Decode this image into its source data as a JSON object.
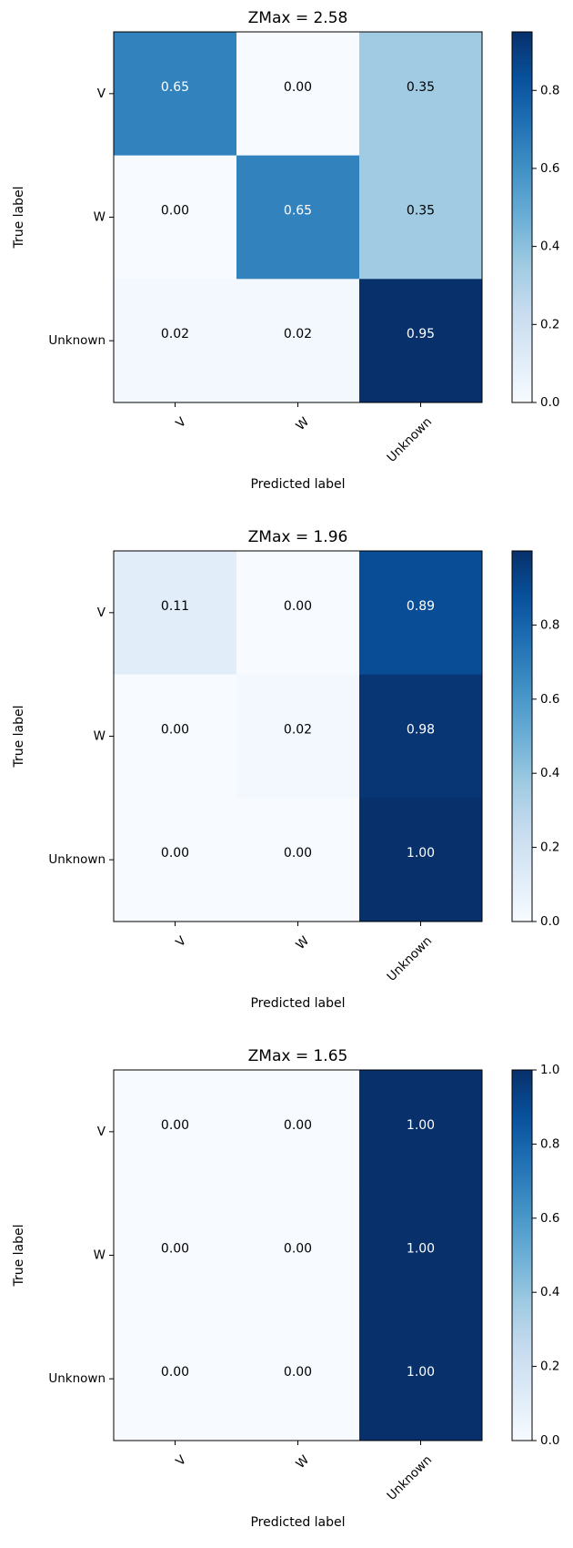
{
  "colors": {
    "cmap_low": "#f7fbff",
    "cmap_mid": "#6baed6",
    "cmap_high": "#08306b",
    "text_dark": "#000000",
    "text_light": "#ffffff"
  },
  "chart_data": [
    {
      "type": "heatmap",
      "title": "ZMax = 2.58",
      "xlabel": "Predicted label",
      "ylabel": "True label",
      "x_categories": [
        "V",
        "W",
        "Unknown"
      ],
      "y_categories": [
        "V",
        "W",
        "Unknown"
      ],
      "values": [
        [
          0.65,
          0.0,
          0.35
        ],
        [
          0.0,
          0.65,
          0.35
        ],
        [
          0.02,
          0.02,
          0.95
        ]
      ],
      "value_labels": [
        [
          "0.65",
          "0.00",
          "0.35"
        ],
        [
          "0.00",
          "0.65",
          "0.35"
        ],
        [
          "0.02",
          "0.02",
          "0.95"
        ]
      ],
      "colorbar": {
        "range": [
          0.0,
          0.95
        ],
        "ticks": [
          0.0,
          0.2,
          0.4,
          0.6,
          0.8
        ],
        "tick_labels": [
          "0.0",
          "0.2",
          "0.4",
          "0.6",
          "0.8"
        ]
      }
    },
    {
      "type": "heatmap",
      "title": "ZMax = 1.96",
      "xlabel": "Predicted label",
      "ylabel": "True label",
      "x_categories": [
        "V",
        "W",
        "Unknown"
      ],
      "y_categories": [
        "V",
        "W",
        "Unknown"
      ],
      "values": [
        [
          0.11,
          0.0,
          0.89
        ],
        [
          0.0,
          0.02,
          0.98
        ],
        [
          0.0,
          0.0,
          1.0
        ]
      ],
      "value_labels": [
        [
          "0.11",
          "0.00",
          "0.89"
        ],
        [
          "0.00",
          "0.02",
          "0.98"
        ],
        [
          "0.00",
          "0.00",
          "1.00"
        ]
      ],
      "colorbar": {
        "range": [
          0.0,
          1.0
        ],
        "ticks": [
          0.0,
          0.2,
          0.4,
          0.6,
          0.8
        ],
        "tick_labels": [
          "0.0",
          "0.2",
          "0.4",
          "0.6",
          "0.8"
        ]
      }
    },
    {
      "type": "heatmap",
      "title": "ZMax = 1.65",
      "xlabel": "Predicted label",
      "ylabel": "True label",
      "x_categories": [
        "V",
        "W",
        "Unknown"
      ],
      "y_categories": [
        "V",
        "W",
        "Unknown"
      ],
      "values": [
        [
          0.0,
          0.0,
          1.0
        ],
        [
          0.0,
          0.0,
          1.0
        ],
        [
          0.0,
          0.0,
          1.0
        ]
      ],
      "value_labels": [
        [
          "0.00",
          "0.00",
          "1.00"
        ],
        [
          "0.00",
          "0.00",
          "1.00"
        ],
        [
          "0.00",
          "0.00",
          "1.00"
        ]
      ],
      "colorbar": {
        "range": [
          0.0,
          1.0
        ],
        "ticks": [
          0.0,
          0.2,
          0.4,
          0.6,
          0.8,
          1.0
        ],
        "tick_labels": [
          "0.0",
          "0.2",
          "0.4",
          "0.6",
          "0.8",
          "1.0"
        ]
      }
    }
  ]
}
